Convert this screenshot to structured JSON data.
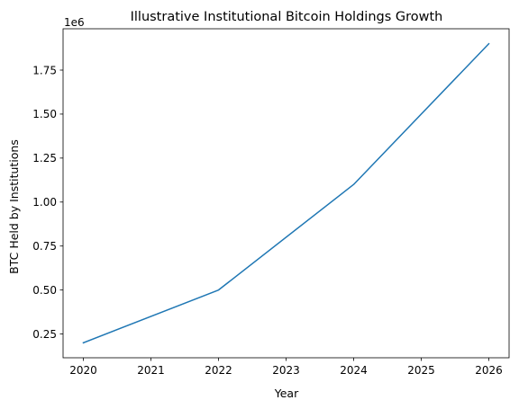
{
  "chart_data": {
    "type": "line",
    "title": "Illustrative Institutional Bitcoin Holdings Growth",
    "xlabel": "Year",
    "ylabel": "BTC Held by Institutions",
    "y_offset_label": "1e6",
    "x": [
      2020,
      2022,
      2024,
      2026
    ],
    "series": [
      {
        "values": [
          200000,
          500000,
          1100000,
          1900000
        ],
        "color": "#1f77b4"
      }
    ],
    "xlim": [
      2019.7,
      2026.3
    ],
    "ylim": [
      115000,
      1985000
    ],
    "xticks": [
      2020,
      2021,
      2022,
      2023,
      2024,
      2025,
      2026
    ],
    "xtick_labels": [
      "2020",
      "2021",
      "2022",
      "2023",
      "2024",
      "2025",
      "2026"
    ],
    "yticks": [
      250000,
      500000,
      750000,
      1000000,
      1250000,
      1500000,
      1750000
    ],
    "ytick_labels": [
      "0.25",
      "0.50",
      "0.75",
      "1.00",
      "1.25",
      "1.50",
      "1.75"
    ],
    "grid": false,
    "legend": "none"
  }
}
